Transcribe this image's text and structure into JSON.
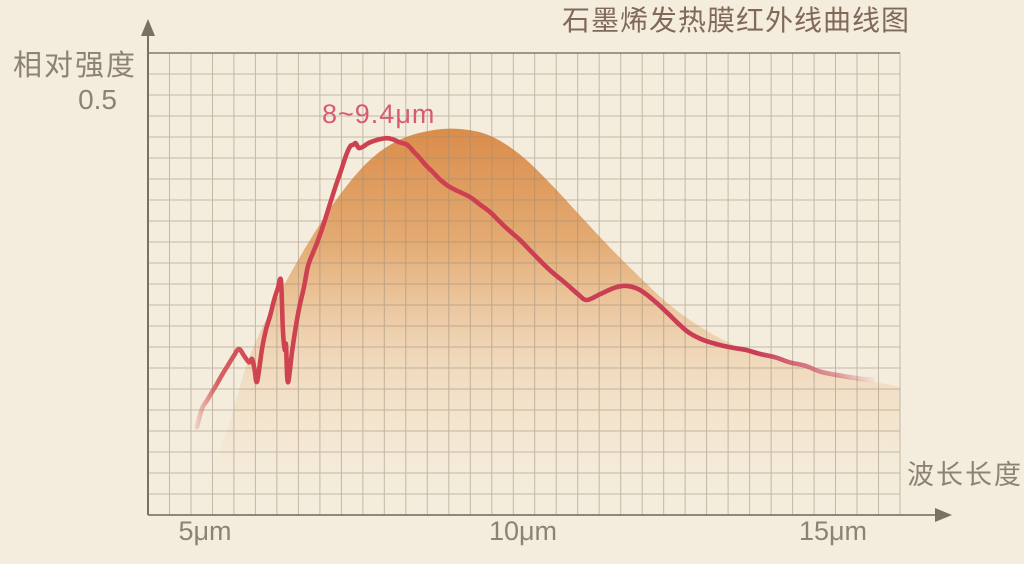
{
  "chart_data": {
    "type": "line+area",
    "title": "石墨烯发热膜红外线曲线图",
    "ylabel": "相对强度",
    "xlabel": "波长长度",
    "y_tick": "0.5",
    "y_tick_value": 0.5,
    "x_ticks": [
      "5μm",
      "10μm",
      "15μm"
    ],
    "x_tick_values_um": [
      5,
      10,
      15
    ],
    "annotation": "8~9.4μm",
    "xlim_um": [
      4.1,
      16.1
    ],
    "ylim": [
      0,
      0.55
    ],
    "grid": true,
    "legend": "none",
    "colors": {
      "background": "#f5eede",
      "curve": "#cb3d53",
      "area_top": "#d8843e",
      "annotation": "#d65c75",
      "axis_labels": "#8d8273",
      "title": "#81695a",
      "grid_lines": "#9b8d78"
    },
    "series": [
      {
        "name": "ir-emission-curve",
        "type": "line",
        "color": "#cb3d53",
        "points": [
          [
            4.87,
            0.106
          ],
          [
            4.95,
            0.128
          ],
          [
            5.03,
            0.138
          ],
          [
            5.11,
            0.148
          ],
          [
            5.19,
            0.158
          ],
          [
            5.28,
            0.17
          ],
          [
            5.37,
            0.181
          ],
          [
            5.46,
            0.192
          ],
          [
            5.54,
            0.2
          ],
          [
            5.62,
            0.192
          ],
          [
            5.7,
            0.184
          ],
          [
            5.75,
            0.188
          ],
          [
            5.79,
            0.175
          ],
          [
            5.83,
            0.161
          ],
          [
            5.91,
            0.201
          ],
          [
            5.97,
            0.223
          ],
          [
            6.04,
            0.241
          ],
          [
            6.1,
            0.259
          ],
          [
            6.16,
            0.273
          ],
          [
            6.21,
            0.282
          ],
          [
            6.24,
            0.223
          ],
          [
            6.27,
            0.199
          ],
          [
            6.29,
            0.205
          ],
          [
            6.32,
            0.16
          ],
          [
            6.39,
            0.199
          ],
          [
            6.45,
            0.229
          ],
          [
            6.51,
            0.253
          ],
          [
            6.58,
            0.276
          ],
          [
            6.64,
            0.3
          ],
          [
            6.72,
            0.316
          ],
          [
            6.8,
            0.331
          ],
          [
            6.9,
            0.353
          ],
          [
            6.99,
            0.375
          ],
          [
            7.08,
            0.396
          ],
          [
            7.17,
            0.416
          ],
          [
            7.24,
            0.432
          ],
          [
            7.31,
            0.444
          ],
          [
            7.36,
            0.446
          ],
          [
            7.4,
            0.448
          ],
          [
            7.45,
            0.442
          ],
          [
            7.52,
            0.444
          ],
          [
            7.6,
            0.448
          ],
          [
            7.7,
            0.451
          ],
          [
            7.8,
            0.453
          ],
          [
            7.91,
            0.454
          ],
          [
            8.01,
            0.452
          ],
          [
            8.1,
            0.449
          ],
          [
            8.22,
            0.446
          ],
          [
            8.32,
            0.438
          ],
          [
            8.42,
            0.43
          ],
          [
            8.52,
            0.421
          ],
          [
            8.63,
            0.413
          ],
          [
            8.76,
            0.403
          ],
          [
            8.9,
            0.395
          ],
          [
            9.06,
            0.389
          ],
          [
            9.22,
            0.383
          ],
          [
            9.38,
            0.374
          ],
          [
            9.54,
            0.365
          ],
          [
            9.66,
            0.356
          ],
          [
            9.78,
            0.347
          ],
          [
            9.9,
            0.339
          ],
          [
            10.02,
            0.331
          ],
          [
            10.25,
            0.313
          ],
          [
            10.49,
            0.295
          ],
          [
            10.73,
            0.28
          ],
          [
            10.94,
            0.266
          ],
          [
            11.08,
            0.259
          ],
          [
            11.29,
            0.266
          ],
          [
            11.53,
            0.274
          ],
          [
            11.72,
            0.276
          ],
          [
            11.93,
            0.271
          ],
          [
            12.17,
            0.257
          ],
          [
            12.37,
            0.243
          ],
          [
            12.56,
            0.229
          ],
          [
            12.72,
            0.219
          ],
          [
            12.93,
            0.211
          ],
          [
            13.14,
            0.206
          ],
          [
            13.36,
            0.202
          ],
          [
            13.6,
            0.199
          ],
          [
            13.84,
            0.194
          ],
          [
            14.08,
            0.19
          ],
          [
            14.31,
            0.184
          ],
          [
            14.55,
            0.18
          ],
          [
            14.79,
            0.173
          ],
          [
            15.03,
            0.169
          ],
          [
            15.27,
            0.166
          ],
          [
            15.46,
            0.164
          ],
          [
            15.64,
            0.163
          ]
        ]
      },
      {
        "name": "heat-radiation-envelope",
        "type": "area",
        "color": "#d8843e",
        "points": [
          [
            5.0,
            0.03
          ],
          [
            5.4,
            0.114
          ],
          [
            5.72,
            0.193
          ],
          [
            6.19,
            0.267
          ],
          [
            6.67,
            0.331
          ],
          [
            7.15,
            0.386
          ],
          [
            7.63,
            0.428
          ],
          [
            8.1,
            0.452
          ],
          [
            8.58,
            0.463
          ],
          [
            9.06,
            0.465
          ],
          [
            9.54,
            0.457
          ],
          [
            10.02,
            0.434
          ],
          [
            10.49,
            0.4
          ],
          [
            10.97,
            0.361
          ],
          [
            11.45,
            0.322
          ],
          [
            11.93,
            0.286
          ],
          [
            12.4,
            0.253
          ],
          [
            12.88,
            0.227
          ],
          [
            13.36,
            0.207
          ],
          [
            13.84,
            0.193
          ],
          [
            14.31,
            0.182
          ],
          [
            14.79,
            0.172
          ],
          [
            15.27,
            0.165
          ],
          [
            15.75,
            0.159
          ],
          [
            16.07,
            0.154
          ]
        ]
      }
    ]
  }
}
